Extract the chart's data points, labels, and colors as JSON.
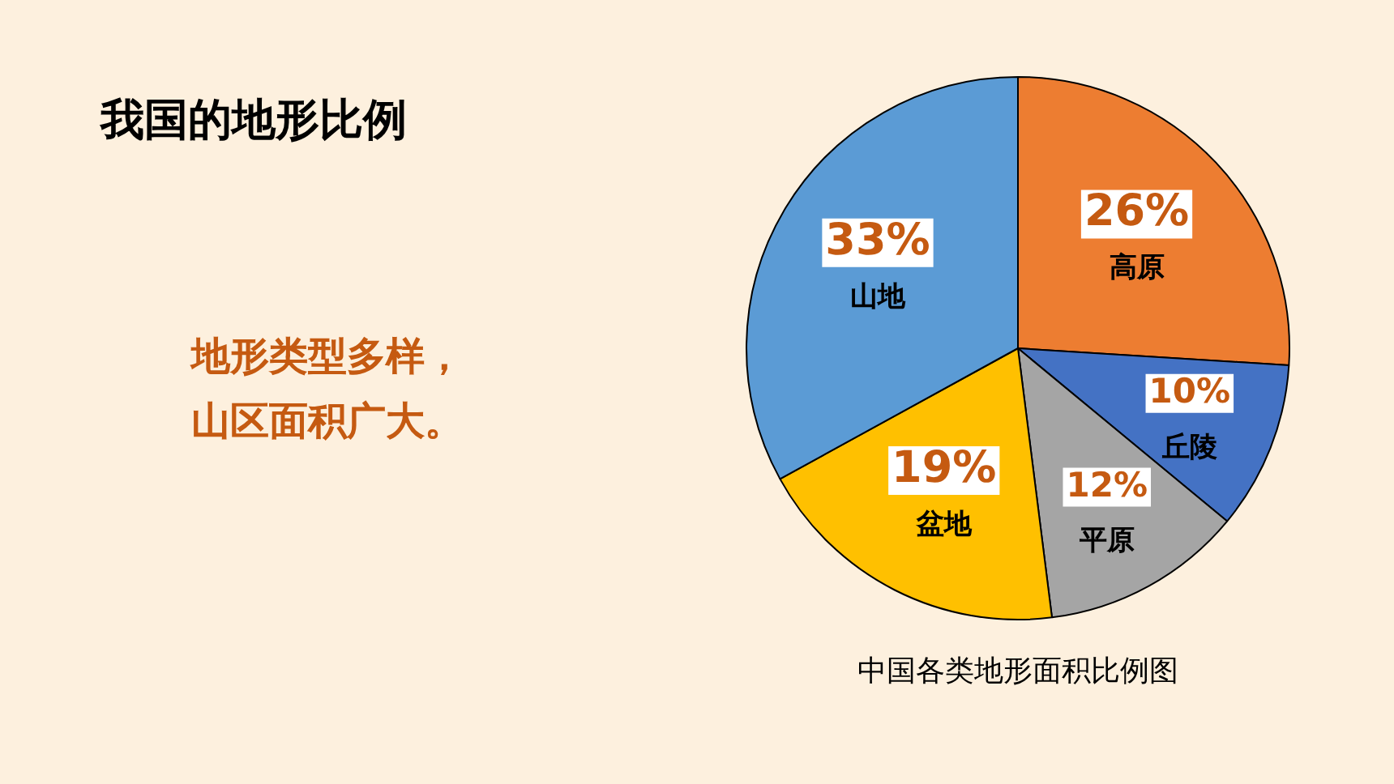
{
  "chart_data": {
    "type": "pie",
    "title": "我国的地形比例",
    "categories": [
      "高原",
      "丘陵",
      "平原",
      "盆地",
      "山地"
    ],
    "values": [
      26,
      10,
      12,
      19,
      33
    ],
    "colors": [
      "#ed7d31",
      "#4472c4",
      "#a5a5a5",
      "#ffc000",
      "#5b9bd5"
    ],
    "value_labels": [
      "26%",
      "10%",
      "12%",
      "19%",
      "33%"
    ],
    "legend": false,
    "annotations": [
      "地形类型多样，",
      "山区面积广大。",
      "中国各类地形面积比例图"
    ]
  }
}
